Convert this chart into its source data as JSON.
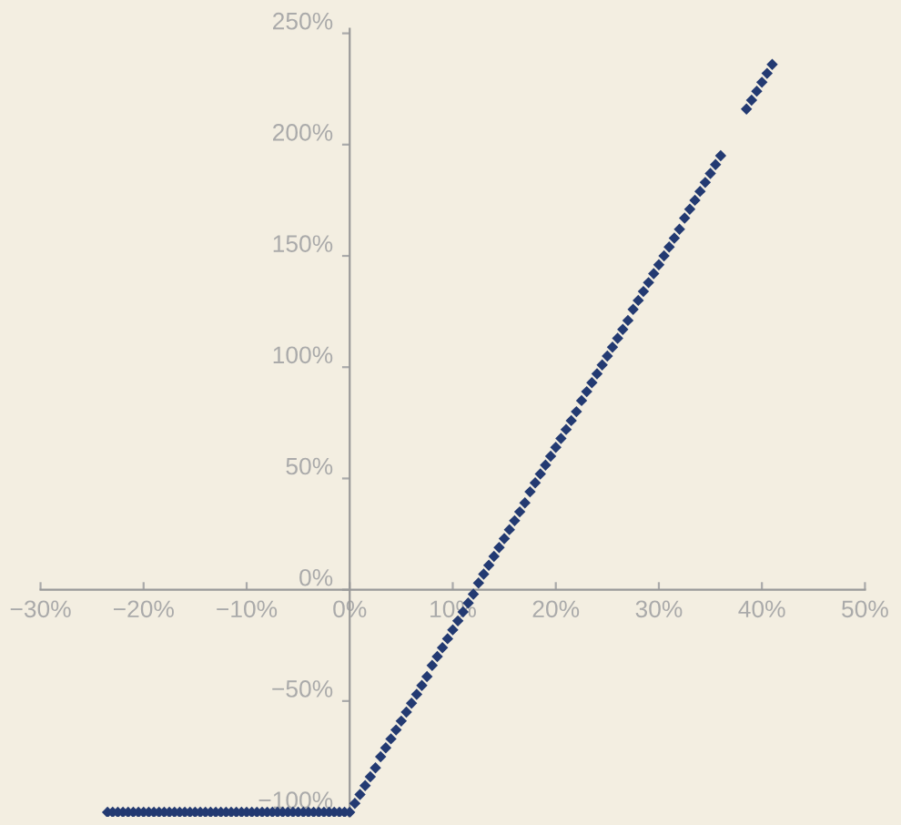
{
  "chart_data": {
    "type": "scatter",
    "marker": "diamond",
    "grid": false,
    "xlim": [
      -30,
      50
    ],
    "ylim": [
      -102,
      252
    ],
    "xticks": [
      {
        "value": -30,
        "label": "−30%"
      },
      {
        "value": -20,
        "label": "−20%"
      },
      {
        "value": -10,
        "label": "−10%"
      },
      {
        "value": 0,
        "label": "0%"
      },
      {
        "value": 10,
        "label": "10%"
      },
      {
        "value": 20,
        "label": "20%"
      },
      {
        "value": 30,
        "label": "30%"
      },
      {
        "value": 40,
        "label": "40%"
      },
      {
        "value": 50,
        "label": "50%"
      }
    ],
    "yticks": [
      {
        "value": -100,
        "label": "−100%"
      },
      {
        "value": -50,
        "label": "−50%"
      },
      {
        "value": 0,
        "label": "0%"
      },
      {
        "value": 50,
        "label": "50%"
      },
      {
        "value": 100,
        "label": "100%"
      },
      {
        "value": 150,
        "label": "150%"
      },
      {
        "value": 200,
        "label": "200%"
      },
      {
        "value": 250,
        "label": "250%"
      }
    ],
    "series": [
      {
        "color": "#233a72",
        "x": [
          -23.5,
          -23,
          -22.5,
          -22,
          -21.5,
          -21,
          -20.5,
          -20,
          -19.5,
          -19,
          -18.5,
          -18,
          -17.5,
          -17,
          -16.5,
          -16,
          -15.5,
          -15,
          -14.5,
          -14,
          -13.5,
          -13,
          -12.5,
          -12,
          -11.5,
          -11,
          -10.5,
          -10,
          -9.5,
          -9,
          -8.5,
          -8,
          -7.5,
          -7,
          -6.5,
          -6,
          -5.5,
          -5,
          -4.5,
          -4,
          -3.5,
          -3,
          -2.5,
          -2,
          -1.5,
          -1,
          -0.5,
          0,
          0.5,
          1,
          1.5,
          2,
          2.5,
          3,
          3.5,
          4,
          4.5,
          5,
          5.5,
          6,
          6.5,
          7,
          7.5,
          8,
          8.5,
          9,
          9.5,
          10,
          10.5,
          11,
          11.5,
          12,
          12.5,
          13,
          13.5,
          14,
          14.5,
          15,
          15.5,
          16,
          16.5,
          17,
          17.5,
          18,
          18.5,
          19,
          19.5,
          20,
          20.5,
          21,
          21.5,
          22,
          22.5,
          23,
          23.5,
          24,
          24.5,
          25,
          25.5,
          26,
          26.5,
          27,
          27.5,
          28,
          28.5,
          29,
          29.5,
          30,
          30.5,
          31,
          31.5,
          32,
          32.5,
          33,
          33.5,
          34,
          34.5,
          35,
          35.5,
          36,
          38.5,
          39,
          39.5,
          40,
          40.5,
          41
        ],
        "values": [
          -100,
          -100,
          -100,
          -100,
          -100,
          -100,
          -100,
          -100,
          -100,
          -100,
          -100,
          -100,
          -100,
          -100,
          -100,
          -100,
          -100,
          -100,
          -100,
          -100,
          -100,
          -100,
          -100,
          -100,
          -100,
          -100,
          -100,
          -100,
          -100,
          -100,
          -100,
          -100,
          -100,
          -100,
          -100,
          -100,
          -100,
          -100,
          -100,
          -100,
          -100,
          -100,
          -100,
          -100,
          -100,
          -100,
          -100,
          -100,
          -96,
          -92,
          -88,
          -84,
          -80,
          -75,
          -71,
          -67,
          -63,
          -59,
          -55,
          -51,
          -47,
          -43,
          -39,
          -34,
          -30,
          -26,
          -22,
          -18,
          -14,
          -10,
          -6,
          -2,
          3,
          7,
          11,
          15,
          19,
          23,
          27,
          31,
          35,
          39,
          44,
          48,
          52,
          56,
          60,
          64,
          68,
          72,
          76,
          80,
          85,
          89,
          93,
          97,
          101,
          105,
          109,
          113,
          117,
          121,
          126,
          130,
          134,
          138,
          142,
          146,
          150,
          154,
          158,
          162,
          167,
          171,
          175,
          179,
          183,
          187,
          191,
          195,
          216,
          220,
          224,
          228,
          232,
          236
        ]
      }
    ]
  }
}
